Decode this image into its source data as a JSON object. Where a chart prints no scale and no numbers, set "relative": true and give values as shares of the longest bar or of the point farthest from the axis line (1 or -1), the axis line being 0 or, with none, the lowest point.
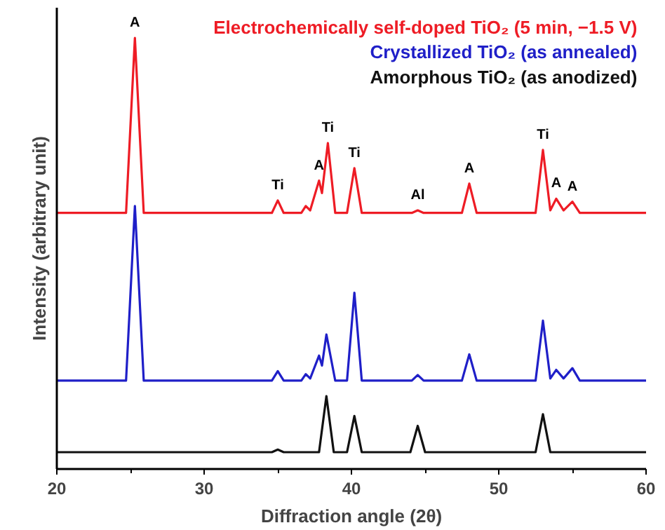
{
  "chart_data": {
    "type": "line",
    "relative": true,
    "xlabel": "Diffraction angle (2θ)",
    "ylabel": "Intensity (arbitrary unit)",
    "xlim": [
      20,
      60
    ],
    "xticks": [
      20,
      30,
      40,
      50,
      60
    ],
    "tick_labels": "x",
    "grid": false,
    "legend": "top right",
    "marker": "none",
    "line_style": "solid",
    "series": [
      {
        "name": "Electrochemically self-doped TiO₂ (5 min, −1.5 V)",
        "color": "#ee1c25",
        "x": [
          20,
          24.7,
          25.3,
          25.9,
          34.6,
          35.0,
          35.4,
          36.6,
          36.9,
          37.2,
          37.8,
          38.0,
          38.4,
          38.9,
          39.7,
          40.2,
          40.7,
          44.1,
          44.5,
          44.9,
          47.5,
          48.0,
          48.5,
          52.5,
          53.0,
          53.5,
          53.9,
          54.4,
          55.0,
          55.5,
          60
        ],
        "values": [
          0.594,
          0.594,
          1.0,
          0.594,
          0.594,
          0.623,
          0.594,
          0.594,
          0.61,
          0.6,
          0.669,
          0.64,
          0.756,
          0.594,
          0.594,
          0.698,
          0.594,
          0.594,
          0.6,
          0.594,
          0.594,
          0.662,
          0.594,
          0.594,
          0.74,
          0.6,
          0.627,
          0.6,
          0.62,
          0.594,
          0.594
        ]
      },
      {
        "name": "Crystallized TiO₂ (as annealed)",
        "color": "#1f1fc8",
        "x": [
          20,
          24.7,
          25.3,
          25.9,
          34.6,
          35.0,
          35.4,
          36.6,
          36.9,
          37.2,
          37.8,
          38.0,
          38.3,
          38.9,
          39.7,
          40.2,
          40.7,
          44.1,
          44.5,
          44.9,
          47.5,
          48.0,
          48.5,
          52.5,
          53.0,
          53.5,
          53.9,
          54.4,
          55.0,
          55.5,
          60
        ],
        "values": [
          0.205,
          0.205,
          0.61,
          0.205,
          0.205,
          0.227,
          0.205,
          0.205,
          0.22,
          0.21,
          0.263,
          0.24,
          0.312,
          0.205,
          0.205,
          0.409,
          0.205,
          0.205,
          0.218,
          0.205,
          0.205,
          0.266,
          0.205,
          0.205,
          0.344,
          0.21,
          0.23,
          0.21,
          0.234,
          0.205,
          0.205
        ]
      },
      {
        "name": "Amorphous TiO₂ (as anodized)",
        "color": "#111111",
        "x": [
          20,
          34.6,
          35.0,
          35.4,
          37.8,
          38.3,
          38.8,
          39.7,
          40.2,
          40.7,
          44.0,
          44.5,
          45.0,
          52.5,
          53.0,
          53.5,
          60
        ],
        "values": [
          0.039,
          0.039,
          0.045,
          0.039,
          0.039,
          0.169,
          0.039,
          0.039,
          0.123,
          0.039,
          0.039,
          0.1,
          0.039,
          0.039,
          0.127,
          0.039,
          0.039
        ]
      }
    ],
    "annotations": [
      {
        "text": "A",
        "x": 25.3,
        "y": 1.0
      },
      {
        "text": "Ti",
        "x": 35.0,
        "y": 0.623
      },
      {
        "text": "A",
        "x": 37.8,
        "y": 0.669
      },
      {
        "text": "Ti",
        "x": 38.4,
        "y": 0.756
      },
      {
        "text": "Ti",
        "x": 40.2,
        "y": 0.698
      },
      {
        "text": "Al",
        "x": 44.5,
        "y": 0.6
      },
      {
        "text": "A",
        "x": 48.0,
        "y": 0.662
      },
      {
        "text": "Ti",
        "x": 53.0,
        "y": 0.74
      },
      {
        "text": "A",
        "x": 53.9,
        "y": 0.627
      },
      {
        "text": "A",
        "x": 55.0,
        "y": 0.62
      }
    ]
  }
}
